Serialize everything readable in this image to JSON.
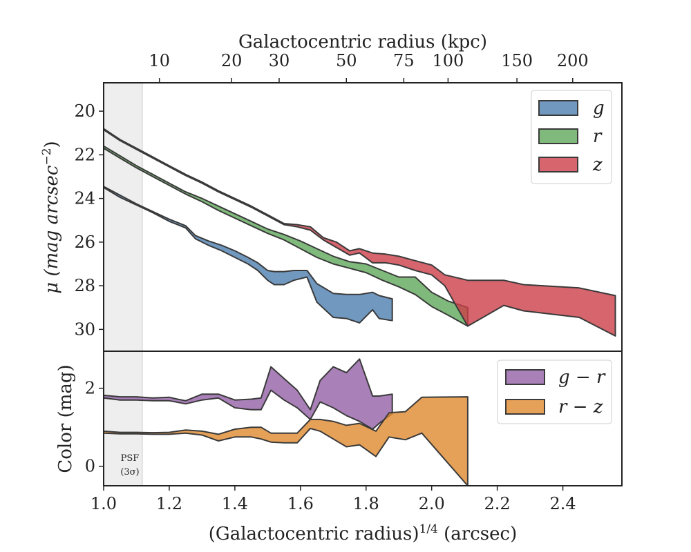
{
  "figure": {
    "top_axis_label": "Galactocentric radius (kpc)",
    "bottom_axis_label_main": "(Galactocentric radius)",
    "bottom_axis_label_sup": "1/4",
    "bottom_axis_label_unit": " (arcsec)",
    "top_panel_ylabel_main": "μ (mag arcsec",
    "top_panel_ylabel_sup": "−2",
    "top_panel_ylabel_end": ")",
    "bottom_panel_ylabel": "Color (mag)",
    "psf_label_line1": "PSF",
    "psf_label_line2": "(3σ)"
  },
  "colors": {
    "g": "#4e7fb0",
    "r": "#5fa85a",
    "z": "#cc3f48",
    "g_minus_r": "#9360a6",
    "r_minus_z": "#e0892e",
    "outline": "#3a3a3a",
    "psf_shade": "#eeeeee"
  },
  "chart_data": [
    {
      "type": "area",
      "panel": "surface-brightness",
      "xlabel": "(Galactocentric radius)^1/4 (arcsec)",
      "ylabel": "μ (mag arcsec^-2)",
      "xlim": [
        1.0,
        2.58
      ],
      "ylim": [
        31.0,
        18.7
      ],
      "y_inverted": true,
      "yticks": [
        20,
        22,
        24,
        26,
        28,
        30
      ],
      "xticks": [
        1.0,
        1.2,
        1.4,
        1.6,
        1.8,
        2.0,
        2.2,
        2.4
      ],
      "top_axis": {
        "label": "Galactocentric radius (kpc)",
        "ticks": [
          {
            "label": "10",
            "x": 1.17
          },
          {
            "label": "20",
            "x": 1.39
          },
          {
            "label": "30",
            "x": 1.535
          },
          {
            "label": "50",
            "x": 1.74
          },
          {
            "label": "75",
            "x": 1.915
          },
          {
            "label": "100",
            "x": 2.05
          },
          {
            "label": "150",
            "x": 2.26
          },
          {
            "label": "200",
            "x": 2.43
          }
        ]
      },
      "psf_region": {
        "x": [
          1.0,
          1.12
        ],
        "label": "PSF (3σ)"
      },
      "legend": {
        "position": "upper right",
        "entries": [
          "g",
          "r",
          "z"
        ]
      },
      "series": [
        {
          "name": "g",
          "x": [
            1.0,
            1.05,
            1.1,
            1.15,
            1.2,
            1.25,
            1.28,
            1.32,
            1.36,
            1.4,
            1.44,
            1.47,
            1.5,
            1.52,
            1.55,
            1.58,
            1.62,
            1.65,
            1.7,
            1.74,
            1.78,
            1.82,
            1.84,
            1.88
          ],
          "lower": [
            23.45,
            23.85,
            24.25,
            24.6,
            24.95,
            25.25,
            25.7,
            25.95,
            26.15,
            26.4,
            26.7,
            26.95,
            27.3,
            27.35,
            27.35,
            27.3,
            27.3,
            27.9,
            28.35,
            28.4,
            28.4,
            28.3,
            28.45,
            28.6
          ],
          "upper": [
            23.5,
            23.95,
            24.3,
            24.65,
            25.05,
            25.35,
            25.85,
            26.15,
            26.4,
            26.7,
            27.0,
            27.3,
            27.75,
            27.95,
            27.95,
            27.75,
            27.6,
            28.75,
            29.45,
            29.5,
            29.7,
            29.1,
            29.5,
            29.6
          ]
        },
        {
          "name": "r",
          "x": [
            1.0,
            1.05,
            1.1,
            1.15,
            1.2,
            1.25,
            1.3,
            1.35,
            1.4,
            1.45,
            1.5,
            1.55,
            1.6,
            1.65,
            1.7,
            1.75,
            1.8,
            1.85,
            1.9,
            1.95,
            2.0,
            2.05,
            2.11
          ],
          "lower": [
            21.6,
            22.05,
            22.5,
            22.9,
            23.3,
            23.7,
            24.0,
            24.35,
            24.7,
            25.05,
            25.4,
            25.65,
            25.95,
            26.3,
            26.65,
            26.9,
            27.0,
            27.3,
            27.6,
            27.6,
            28.3,
            28.7,
            29.0
          ],
          "upper": [
            21.7,
            22.15,
            22.6,
            23.0,
            23.4,
            23.8,
            24.15,
            24.55,
            24.9,
            25.25,
            25.6,
            25.9,
            26.3,
            26.7,
            27.0,
            27.2,
            27.4,
            27.75,
            28.05,
            28.4,
            28.95,
            29.35,
            29.85
          ]
        },
        {
          "name": "z",
          "x": [
            1.0,
            1.05,
            1.1,
            1.15,
            1.2,
            1.25,
            1.3,
            1.35,
            1.4,
            1.45,
            1.5,
            1.55,
            1.59,
            1.63,
            1.67,
            1.71,
            1.75,
            1.78,
            1.82,
            1.86,
            1.9,
            1.95,
            2.0,
            2.04,
            2.11,
            2.22,
            2.28,
            2.45,
            2.56
          ],
          "lower": [
            20.8,
            21.3,
            21.7,
            22.1,
            22.5,
            22.9,
            23.25,
            23.65,
            24.0,
            24.35,
            24.75,
            25.15,
            25.2,
            25.3,
            25.8,
            26.0,
            26.4,
            26.3,
            26.5,
            26.55,
            26.65,
            26.85,
            27.05,
            27.5,
            27.75,
            27.75,
            27.95,
            28.1,
            28.45
          ],
          "upper": [
            20.85,
            21.35,
            21.75,
            22.15,
            22.55,
            22.95,
            23.3,
            23.7,
            24.05,
            24.4,
            24.8,
            25.2,
            25.3,
            25.45,
            25.9,
            26.25,
            26.6,
            26.5,
            26.95,
            26.95,
            27.05,
            27.3,
            27.5,
            28.0,
            29.85,
            28.9,
            29.15,
            29.45,
            30.3
          ]
        }
      ]
    },
    {
      "type": "area",
      "panel": "color",
      "xlabel": "(Galactocentric radius)^1/4 (arcsec)",
      "ylabel": "Color (mag)",
      "xlim": [
        1.0,
        2.58
      ],
      "ylim": [
        -0.5,
        2.95
      ],
      "yticks": [
        0,
        2
      ],
      "xticks": [
        1.0,
        1.2,
        1.4,
        1.6,
        1.8,
        2.0,
        2.2,
        2.4
      ],
      "xtick_labels": [
        "1.0",
        "1.2",
        "1.4",
        "1.6",
        "1.8",
        "2.0",
        "2.2",
        "2.4"
      ],
      "legend": {
        "position": "upper right",
        "entries": [
          "g − r",
          "r − z"
        ]
      },
      "series": [
        {
          "name": "g − r",
          "x": [
            1.0,
            1.05,
            1.1,
            1.15,
            1.2,
            1.22,
            1.25,
            1.3,
            1.35,
            1.4,
            1.45,
            1.48,
            1.51,
            1.55,
            1.59,
            1.63,
            1.66,
            1.7,
            1.74,
            1.78,
            1.82,
            1.84,
            1.88
          ],
          "lower": [
            1.75,
            1.7,
            1.7,
            1.68,
            1.68,
            1.65,
            1.6,
            1.7,
            1.75,
            1.5,
            1.45,
            1.45,
            1.95,
            1.7,
            1.5,
            1.2,
            1.65,
            1.5,
            1.3,
            1.15,
            0.95,
            1.1,
            1.35
          ],
          "upper": [
            1.82,
            1.78,
            1.78,
            1.75,
            1.77,
            1.73,
            1.68,
            1.85,
            1.85,
            1.7,
            1.72,
            1.75,
            2.55,
            2.25,
            1.95,
            1.45,
            2.2,
            2.55,
            2.4,
            2.75,
            1.8,
            1.8,
            1.85
          ]
        },
        {
          "name": "r − z",
          "x": [
            1.0,
            1.05,
            1.1,
            1.15,
            1.2,
            1.25,
            1.3,
            1.35,
            1.4,
            1.45,
            1.48,
            1.51,
            1.55,
            1.59,
            1.63,
            1.66,
            1.7,
            1.74,
            1.78,
            1.83,
            1.87,
            1.92,
            1.97,
            2.11
          ],
          "lower": [
            0.85,
            0.83,
            0.83,
            0.82,
            0.82,
            0.85,
            0.8,
            0.65,
            0.75,
            0.75,
            0.7,
            0.62,
            0.6,
            0.6,
            0.97,
            0.9,
            0.7,
            0.5,
            0.55,
            0.25,
            0.75,
            0.68,
            0.85,
            -0.5
          ],
          "upper": [
            0.9,
            0.87,
            0.87,
            0.86,
            0.87,
            0.93,
            0.9,
            0.82,
            0.95,
            1.0,
            1.0,
            0.85,
            0.85,
            0.85,
            1.2,
            1.2,
            1.15,
            1.05,
            1.1,
            0.9,
            1.37,
            1.4,
            1.77,
            1.78
          ]
        }
      ]
    }
  ]
}
